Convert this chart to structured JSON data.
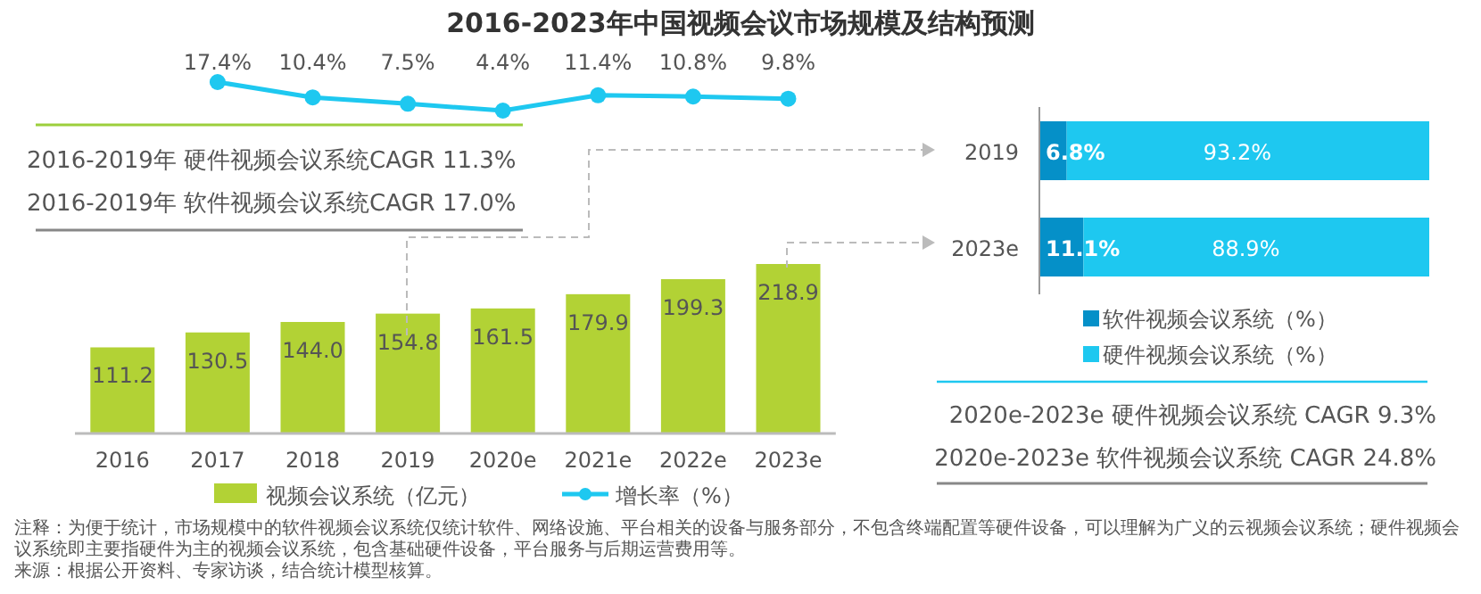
{
  "chart_data": [
    {
      "type": "other",
      "title": "2016-2023年中国视频会议市场规模及结构预测"
    },
    {
      "type": "bar",
      "categories": [
        "2016",
        "2017",
        "2018",
        "2019",
        "2020e",
        "2021e",
        "2022e",
        "2023e"
      ],
      "series": [
        {
          "name": "视频会议系统（亿元）",
          "color": "#b2d235",
          "values": [
            111.2,
            130.5,
            144.0,
            154.8,
            161.5,
            179.9,
            199.3,
            218.9
          ],
          "value_labels": [
            "111.2",
            "130.5",
            "144.0",
            "154.8",
            "161.5",
            "179.9",
            "199.3",
            "218.9"
          ]
        }
      ],
      "legend": "bottom",
      "annotations": [
        "2016-2019年 硬件视频会议系统CAGR 11.3%",
        "2016-2019年 软件视频会议系统CAGR 17.0%",
        "注释：为便于统计，市场规模中的软件视频会议系统仅统计软件、网络设施、平台相关的设备与服务部分，不包含终端配置等硬件设备，可以理解为广义的云视频会议系统；硬件视频会议系统即主要指硬件为主的视频会议系统，包含基础硬件设备，平台服务与后期运营费用等。",
        "来源：根据公开资料、专家访谈，结合统计模型核算。"
      ]
    },
    {
      "type": "line",
      "categories": [
        null,
        null,
        null,
        null,
        null,
        null,
        null,
        null
      ],
      "series": [
        {
          "name": "增长率（%）",
          "color": "#1ec8f0",
          "values": [
            null,
            17.4,
            10.4,
            7.5,
            4.4,
            11.4,
            10.8,
            9.8
          ],
          "value_labels": [
            null,
            "17.4%",
            "10.4%",
            "7.5%",
            "4.4%",
            "11.4%",
            "10.8%",
            "9.8%"
          ]
        }
      ],
      "marker": "circle",
      "legend": "bottom"
    },
    {
      "type": "bar",
      "orientation": "horizontal",
      "stacked": true,
      "categories": [
        "2019",
        "2023e"
      ],
      "series": [
        {
          "name": "软件视频会议系统（%）",
          "color": "#0590c8",
          "values": [
            6.8,
            11.1
          ],
          "value_labels": [
            "6.8%",
            "11.1%"
          ]
        },
        {
          "name": "硬件视频会议系统（%）",
          "color": "#1ec8f0",
          "values": [
            93.2,
            88.9
          ],
          "value_labels": [
            "93.2%",
            "88.9%"
          ]
        }
      ],
      "legend": "bottom",
      "annotations": [
        "2020e-2023e 硬件视频会议系统 CAGR 9.3%",
        "2020e-2023e 软件视频会议系统 CAGR 24.8%"
      ]
    }
  ]
}
